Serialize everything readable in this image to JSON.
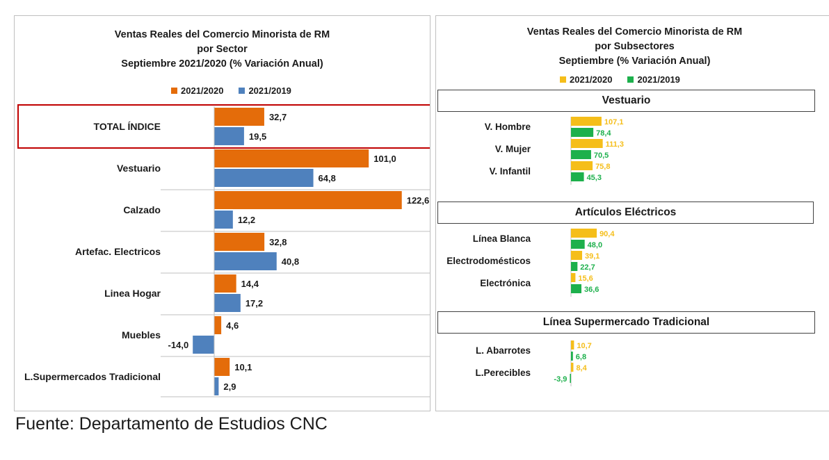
{
  "colors": {
    "orange": "#E46C0A",
    "blue": "#4F81BD",
    "yellow": "#F5BE1A",
    "green": "#1DB04C",
    "highlight_border": "#C00000"
  },
  "left": {
    "title_lines": [
      "Ventas Reales del Comercio Minorista de RM",
      "por Sector",
      "Septiembre 2021/2020 (% Variación Anual)"
    ],
    "legend": [
      "2021/2020",
      "2021/2019"
    ]
  },
  "right": {
    "title_lines": [
      "Ventas Reales del Comercio Minorista de RM",
      "por Subsectores",
      "Septiembre (% Variación Anual)"
    ],
    "legend": [
      "2021/2020",
      "2021/2019"
    ],
    "sections": [
      "Vestuario",
      "Artículos Eléctricos",
      "Línea Supermercado Tradicional"
    ]
  },
  "chart_data": [
    {
      "type": "bar",
      "orientation": "horizontal",
      "title": "Ventas Reales del Comercio Minorista de RM por Sector Septiembre 2021/2020 (% Variación Anual)",
      "categories": [
        "TOTAL ÍNDICE",
        "Vestuario",
        "Calzado",
        "Artefac. Electricos",
        "Linea Hogar",
        "Muebles",
        "L.Supermercados Tradicional"
      ],
      "series": [
        {
          "name": "2021/2020",
          "values": [
            32.7,
            101.0,
            122.6,
            32.8,
            14.4,
            4.6,
            10.1
          ],
          "labels": [
            "32,7",
            "101,0",
            "122,6",
            "32,8",
            "14,4",
            "4,6",
            "10,1"
          ]
        },
        {
          "name": "2021/2019",
          "values": [
            19.5,
            64.8,
            12.2,
            40.8,
            17.2,
            -14.0,
            2.9
          ],
          "labels": [
            "19,5",
            "64,8",
            "12,2",
            "40,8",
            "17,2",
            "-14,0",
            "2,9"
          ]
        }
      ],
      "highlighted_category": "TOTAL ÍNDICE",
      "legend_position": "top"
    },
    {
      "type": "bar",
      "orientation": "horizontal",
      "title": "Ventas Reales del Comercio Minorista de RM por Subsectores Septiembre (% Variación Anual)",
      "groups": [
        {
          "section": "Vestuario",
          "categories": [
            "V. Hombre",
            "V. Mujer",
            "V. Infantil"
          ],
          "series": [
            {
              "name": "2021/2020",
              "values": [
                107.1,
                111.3,
                75.8
              ],
              "labels": [
                "107,1",
                "111,3",
                "75,8"
              ]
            },
            {
              "name": "2021/2019",
              "values": [
                78.4,
                70.5,
                45.3
              ],
              "labels": [
                "78,4",
                "70,5",
                "45,3"
              ]
            }
          ]
        },
        {
          "section": "Artículos Eléctricos",
          "categories": [
            "Línea Blanca",
            "Electrodomésticos",
            "Electrónica"
          ],
          "series": [
            {
              "name": "2021/2020",
              "values": [
                90.4,
                39.1,
                15.6
              ],
              "labels": [
                "90,4",
                "39,1",
                "15,6"
              ]
            },
            {
              "name": "2021/2019",
              "values": [
                48.0,
                22.7,
                36.6
              ],
              "labels": [
                "48,0",
                "22,7",
                "36,6"
              ]
            }
          ]
        },
        {
          "section": "Línea Supermercado Tradicional",
          "categories": [
            "L. Abarrotes",
            "L.Perecibles"
          ],
          "series": [
            {
              "name": "2021/2020",
              "values": [
                10.7,
                8.4
              ],
              "labels": [
                "10,7",
                "8,4"
              ]
            },
            {
              "name": "2021/2019",
              "values": [
                6.8,
                -3.9
              ],
              "labels": [
                "6,8",
                "-3,9"
              ]
            }
          ]
        }
      ],
      "legend_position": "top"
    }
  ],
  "source": "Fuente: Departamento de Estudios CNC"
}
